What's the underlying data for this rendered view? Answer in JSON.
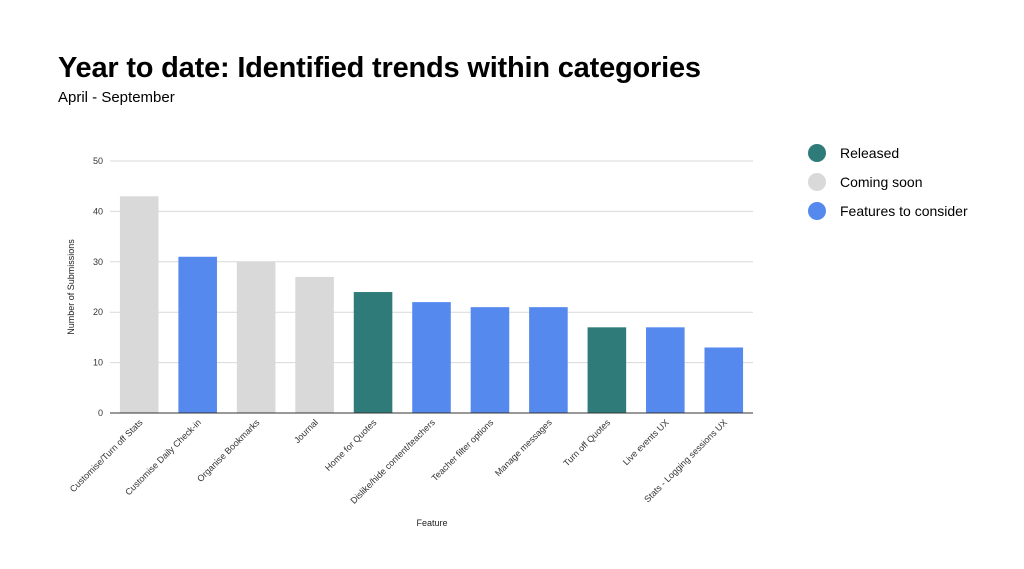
{
  "header": {
    "title": "Year to date: Identified trends within categories",
    "subtitle": "April - September"
  },
  "legend": [
    {
      "label": "Released",
      "color": "#2e7b79"
    },
    {
      "label": "Coming soon",
      "color": "#d9d9d9"
    },
    {
      "label": "Features to consider",
      "color": "#5589ee"
    }
  ],
  "chart_data": {
    "type": "bar",
    "categories": [
      "Customise/Turn off Stats",
      "Customise Daily Check-in",
      "Organise Bookmarks",
      "Journal",
      "Home for Quotes",
      "Dislike/hide content/teachers",
      "Teacher filter options",
      "Manage messages",
      "Turn off Quotes",
      "Live events UX",
      "Stats - Logging sessions UX"
    ],
    "values": [
      43,
      31,
      30,
      27,
      24,
      22,
      21,
      21,
      17,
      17,
      13
    ],
    "status": [
      "Coming soon",
      "Features to consider",
      "Coming soon",
      "Coming soon",
      "Released",
      "Features to consider",
      "Features to consider",
      "Features to consider",
      "Released",
      "Features to consider",
      "Features to consider"
    ],
    "xlabel": "Feature",
    "ylabel": "Number of Submissions",
    "ylim": [
      0,
      50
    ],
    "yticks": [
      0,
      10,
      20,
      30,
      40,
      50
    ],
    "grid": true,
    "legend_position": "right"
  }
}
